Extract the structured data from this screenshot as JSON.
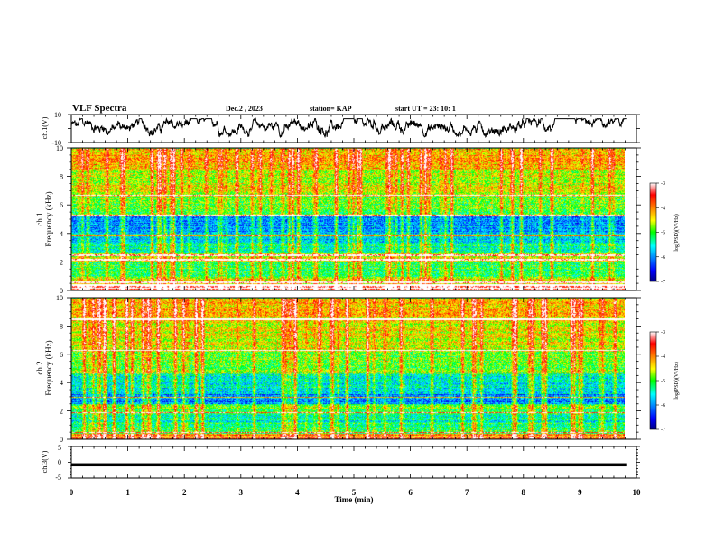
{
  "header": {
    "title": "VLF Spectra",
    "date": "Dec.2 , 2023",
    "station": "station= KAP",
    "start_ut": "start UT = 23: 10: 1"
  },
  "chart_data": [
    {
      "type": "line",
      "name": "ch1-waveform",
      "ylabel": "ch.1(V)",
      "ylim": [
        -10,
        10
      ],
      "y_ticks": [
        "10",
        "-10"
      ],
      "xlim": [
        0,
        10
      ],
      "approx_range": [
        -6,
        7
      ],
      "approx_mean": 1.5
    },
    {
      "type": "heatmap",
      "name": "ch1-spectrogram",
      "ylabel": "ch.1\nFrequency (kHz)",
      "ylabel_lines": [
        "ch.1",
        "Frequency (kHz)"
      ],
      "ylim": [
        0,
        10
      ],
      "xlim": [
        0,
        10
      ],
      "y_ticks": [
        "0",
        "2",
        "4",
        "6",
        "8",
        "10"
      ],
      "data_end_min": 9.8,
      "frequency_bands_kHz": [
        {
          "from": 0,
          "to": 0.5,
          "level": -3.5
        },
        {
          "from": 0.5,
          "to": 1.0,
          "level": -4.6
        },
        {
          "from": 1.0,
          "to": 2.0,
          "level": -5.2
        },
        {
          "from": 2.0,
          "to": 2.7,
          "level": -4.7
        },
        {
          "from": 2.7,
          "to": 3.4,
          "level": -5.4
        },
        {
          "from": 3.4,
          "to": 4.0,
          "level": -5.8
        },
        {
          "from": 4.0,
          "to": 5.2,
          "level": -6.0
        },
        {
          "from": 5.2,
          "to": 6.6,
          "level": -5.0
        },
        {
          "from": 6.6,
          "to": 8.5,
          "level": -4.7
        },
        {
          "from": 8.5,
          "to": 10.0,
          "level": -4.2
        }
      ],
      "bright_lines_kHz": [
        0.2,
        0.4,
        0.6,
        2.2,
        2.5,
        3.9,
        5.3,
        6.7
      ],
      "colorbar": {
        "label": "log(PSD)(V²/Hz)",
        "min": -7,
        "max": -3,
        "ticks": [
          "-3",
          "-4",
          "-5",
          "-6",
          "-7"
        ]
      }
    },
    {
      "type": "heatmap",
      "name": "ch2-spectrogram",
      "ylabel": "ch.2\nFrequency (kHz)",
      "ylabel_lines": [
        "ch.2",
        "Frequency (kHz)"
      ],
      "ylim": [
        0,
        10
      ],
      "xlim": [
        0,
        10
      ],
      "y_ticks": [
        "0",
        "2",
        "4",
        "6",
        "8",
        "10"
      ],
      "data_end_min": 9.8,
      "frequency_bands_kHz": [
        {
          "from": 0,
          "to": 0.4,
          "level": -4.0
        },
        {
          "from": 0.4,
          "to": 1.2,
          "level": -5.2
        },
        {
          "from": 1.2,
          "to": 1.8,
          "level": -5.5
        },
        {
          "from": 1.8,
          "to": 2.5,
          "level": -5.0
        },
        {
          "from": 2.5,
          "to": 3.2,
          "level": -6.1
        },
        {
          "from": 3.2,
          "to": 4.6,
          "level": -5.6
        },
        {
          "from": 4.6,
          "to": 6.2,
          "level": -5.0
        },
        {
          "from": 6.2,
          "to": 8.4,
          "level": -4.6
        },
        {
          "from": 8.4,
          "to": 10.0,
          "level": -4.3
        }
      ],
      "bright_lines_kHz": [
        0.2,
        0.5,
        1.9,
        3.0,
        4.7,
        6.3,
        8.5
      ],
      "colorbar": {
        "label": "log(PSD)(V²/Hz)",
        "min": -7,
        "max": -3,
        "ticks": [
          "-3",
          "-4",
          "-5",
          "-6",
          "-7"
        ]
      }
    },
    {
      "type": "line",
      "name": "ch3-waveform",
      "ylabel": "ch.3(V)",
      "ylim": [
        -5,
        5
      ],
      "y_ticks": [
        "5",
        "0",
        "-5"
      ],
      "xlim": [
        0,
        10
      ],
      "approx_value": -0.8,
      "approx_band": [
        -1.3,
        -0.3
      ]
    }
  ],
  "x_axis": {
    "label": "Time (min)",
    "ticks": [
      "0",
      "1",
      "2",
      "3",
      "4",
      "5",
      "6",
      "7",
      "8",
      "9",
      "10"
    ]
  }
}
